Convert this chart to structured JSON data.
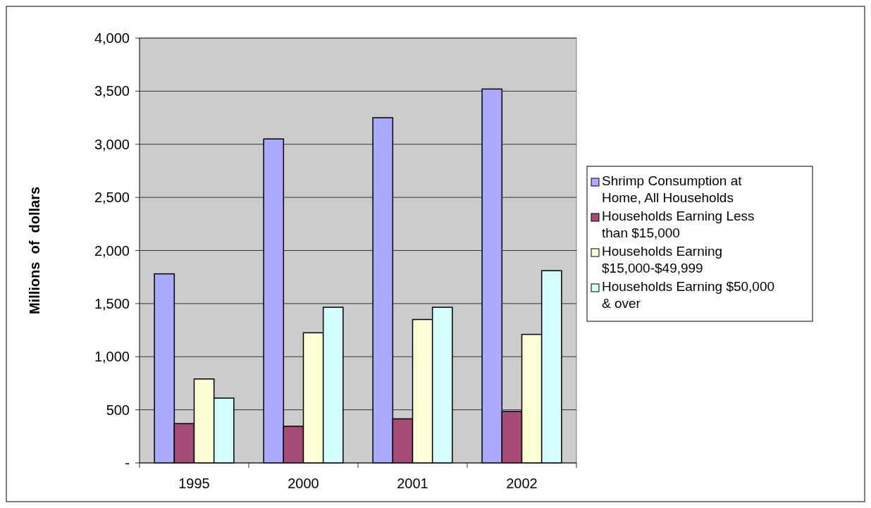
{
  "chart_data": {
    "type": "bar",
    "ylabel": "Millions  of  dollars",
    "categories": [
      "1995",
      "2000",
      "2001",
      "2002"
    ],
    "series": [
      {
        "name": "Shrimp Consumption at Home, All Households",
        "color": "#aaaaff",
        "values": [
          1780,
          3050,
          3250,
          3520
        ]
      },
      {
        "name": "Households Earning Less than $15,000",
        "color": "#a64a76",
        "values": [
          370,
          345,
          415,
          485
        ]
      },
      {
        "name": "Households Earning $15,000-$49,999",
        "color": "#ffffd6",
        "values": [
          790,
          1225,
          1350,
          1210
        ]
      },
      {
        "name": "Households Earning $50,000 & over",
        "color": "#d4ffff",
        "values": [
          610,
          1465,
          1465,
          1810
        ]
      }
    ],
    "ylim": [
      0,
      4000
    ],
    "yticks": [
      {
        "value": 0,
        "label": "-"
      },
      {
        "value": 500,
        "label": "500"
      },
      {
        "value": 1000,
        "label": "1,000"
      },
      {
        "value": 1500,
        "label": "1,500"
      },
      {
        "value": 2000,
        "label": "2,000"
      },
      {
        "value": 2500,
        "label": "2,500"
      },
      {
        "value": 3000,
        "label": "3,000"
      },
      {
        "value": 3500,
        "label": "3,500"
      },
      {
        "value": 4000,
        "label": "4,000"
      }
    ],
    "grid": "y",
    "legend": "right"
  }
}
